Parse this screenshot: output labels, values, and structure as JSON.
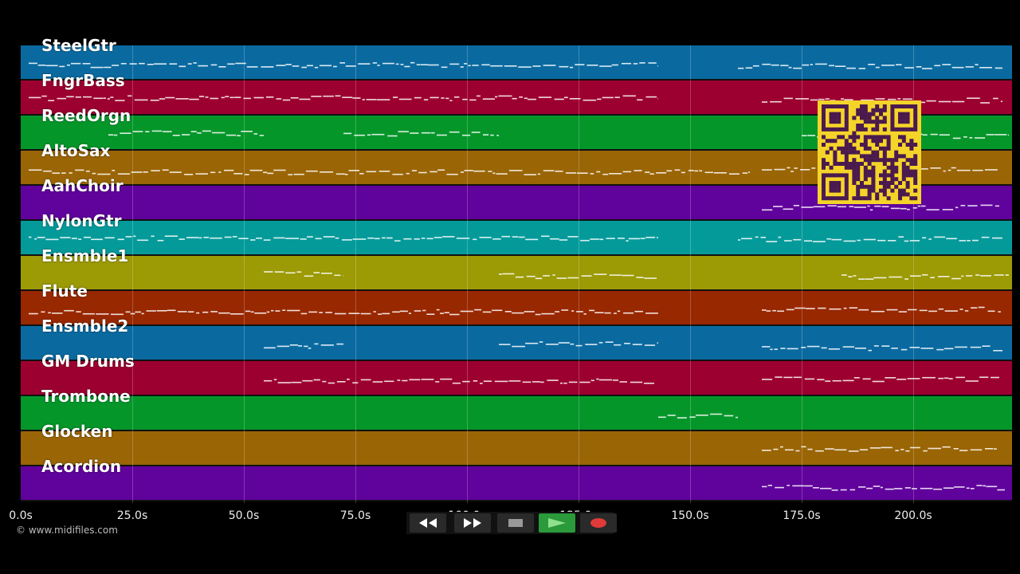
{
  "tracks": [
    {
      "name": "SteelGtr",
      "color": "#0a6aa0"
    },
    {
      "name": "FngrBass",
      "color": "#9c0030"
    },
    {
      "name": "ReedOrgn",
      "color": "#05962a"
    },
    {
      "name": "AltoSax",
      "color": "#9a6505"
    },
    {
      "name": "AahChoir",
      "color": "#60029c"
    },
    {
      "name": "NylonGtr",
      "color": "#059a9a"
    },
    {
      "name": "Ensmble1",
      "color": "#9c9a05"
    },
    {
      "name": "Flute",
      "color": "#982800"
    },
    {
      "name": "Ensmble2",
      "color": "#0a6aa0"
    },
    {
      "name": "GM Drums",
      "color": "#9c0030"
    },
    {
      "name": "Trombone",
      "color": "#05962a"
    },
    {
      "name": "Glocken",
      "color": "#9a6505"
    },
    {
      "name": "Acordion",
      "color": "#60029c"
    }
  ],
  "timeline": {
    "ticks": [
      "0.0s",
      "25.0s",
      "50.0s",
      "75.0s",
      "100.0s",
      "125.0s",
      "150.0s",
      "175.0s",
      "200.0s"
    ],
    "duration_s": 222
  },
  "copyright": "© www.midifiles.com",
  "transport": {
    "rewind": "rewind-icon",
    "fast_forward": "fast-forward-icon",
    "stop": "stop-icon",
    "play": "play-icon",
    "record": "record-icon",
    "play_color": "#2a9a3a",
    "record_color": "#e03a3a"
  },
  "qr_color": "#f5d42a"
}
